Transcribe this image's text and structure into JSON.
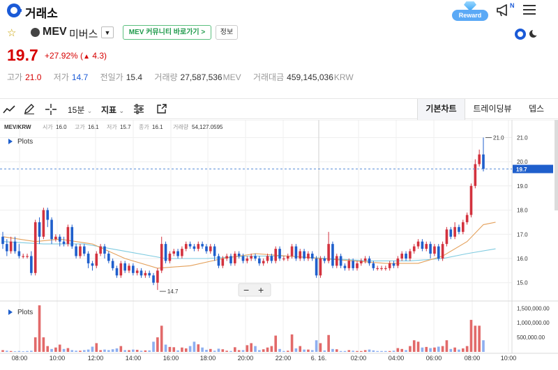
{
  "app": {
    "title": "거래소",
    "reward_label": "Reward",
    "notice_badge": "N"
  },
  "market": {
    "symbol": "MEV",
    "korean_name": "미버스",
    "community_button": "MEV 커뮤니티 바로가기 >",
    "info_button": "정보"
  },
  "price": {
    "current": "19.7",
    "change_percent": "+27.92%",
    "change_amount": "4.3",
    "change_arrow": "▲"
  },
  "stats": {
    "high_label": "고가",
    "high": "21.0",
    "low_label": "저가",
    "low": "14.7",
    "prev_label": "전일가",
    "prev": "15.4",
    "volume_label": "거래량",
    "volume": "27,587,536",
    "volume_unit": "MEV",
    "amount_label": "거래대금",
    "amount": "459,145,036",
    "amount_unit": "KRW"
  },
  "toolbar": {
    "interval": "15분",
    "indicator": "지표",
    "tabs": [
      "기본차트",
      "트레이딩뷰",
      "뎁스"
    ],
    "active_tab": 0
  },
  "chart_info": {
    "pair": "MEV/KRW",
    "open_label": "시가",
    "open": "16.0",
    "high_label": "고가",
    "high": "16.1",
    "low_label": "저가",
    "low": "15.7",
    "close_label": "종가",
    "close": "16.1",
    "vol_label": "거래량",
    "vol": "54,127.0595",
    "plots_label": "Plots",
    "volume_plots_label": "Plots"
  },
  "colors": {
    "up": "#d3323e",
    "down": "#1f5fcc",
    "vol_up": "#e26a6a",
    "vol_down": "#8eaff0",
    "ma_fast": "#e4a05a",
    "ma_slow": "#7fcbe0",
    "accent": "#1a5ad7"
  },
  "chart_data": {
    "type": "candlestick",
    "y_ticks": [
      "21.0",
      "20.0",
      "19.0",
      "18.0",
      "17.0",
      "16.0",
      "15.0"
    ],
    "ylim": [
      14.3,
      21.5
    ],
    "x_ticks": [
      "08:00",
      "10:00",
      "12:00",
      "14:00",
      "16:00",
      "18:00",
      "20:00",
      "22:00",
      "6. 16.",
      "02:00",
      "04:00",
      "06:00",
      "08:00",
      "10:00"
    ],
    "current_price_label": "19.7",
    "high_marker": "21.0",
    "low_marker": "14.7",
    "volume_ticks": [
      "1,500,000.00",
      "1,000,000.00",
      "500,000.00"
    ],
    "volume_max": 1700000,
    "candles": [
      [
        16.9,
        16.6,
        17.1,
        16.4
      ],
      [
        16.6,
        16.3,
        16.8,
        16.1
      ],
      [
        16.3,
        16.7,
        16.9,
        16.2
      ],
      [
        16.7,
        16.3,
        16.9,
        16.2
      ],
      [
        16.3,
        16.1,
        16.6,
        16.0
      ],
      [
        16.1,
        16.1,
        16.2,
        16.0
      ],
      [
        16.1,
        16.1,
        16.2,
        16.0
      ],
      [
        16.1,
        15.4,
        16.3,
        15.3
      ],
      [
        15.4,
        17.5,
        17.6,
        15.3
      ],
      [
        17.5,
        16.9,
        17.7,
        16.6
      ],
      [
        16.9,
        18.0,
        18.1,
        16.8
      ],
      [
        18.0,
        17.6,
        18.1,
        17.3
      ],
      [
        17.6,
        16.8,
        17.7,
        16.6
      ],
      [
        16.8,
        16.9,
        17.0,
        16.7
      ],
      [
        16.9,
        16.7,
        17.0,
        16.5
      ],
      [
        16.7,
        16.6,
        16.9,
        16.5
      ],
      [
        16.6,
        17.3,
        17.4,
        16.5
      ],
      [
        17.3,
        16.5,
        17.4,
        16.4
      ],
      [
        16.5,
        16.1,
        16.6,
        16.0
      ],
      [
        16.1,
        16.5,
        16.6,
        16.0
      ],
      [
        16.5,
        16.2,
        16.6,
        16.1
      ],
      [
        16.2,
        15.8,
        16.3,
        15.6
      ],
      [
        15.8,
        15.7,
        15.9,
        15.5
      ],
      [
        15.7,
        16.2,
        16.3,
        15.6
      ],
      [
        16.2,
        16.5,
        16.6,
        16.1
      ],
      [
        16.5,
        16.2,
        16.6,
        16.0
      ],
      [
        16.2,
        15.9,
        16.3,
        15.8
      ],
      [
        15.9,
        15.6,
        16.0,
        15.5
      ],
      [
        15.6,
        15.3,
        15.7,
        15.2
      ],
      [
        15.3,
        15.8,
        15.9,
        15.2
      ],
      [
        15.8,
        15.5,
        15.9,
        15.4
      ],
      [
        15.5,
        15.7,
        15.8,
        15.4
      ],
      [
        15.7,
        15.4,
        15.8,
        15.3
      ],
      [
        15.4,
        15.5,
        15.6,
        15.3
      ],
      [
        15.5,
        15.3,
        15.6,
        15.2
      ],
      [
        15.3,
        15.4,
        15.5,
        15.2
      ],
      [
        15.4,
        15.3,
        15.5,
        15.2
      ],
      [
        15.3,
        15.0,
        15.4,
        14.9
      ],
      [
        15.0,
        15.5,
        15.6,
        14.7
      ],
      [
        15.5,
        16.6,
        16.9,
        15.4
      ],
      [
        16.6,
        15.9,
        16.7,
        15.8
      ],
      [
        15.9,
        16.2,
        16.3,
        15.8
      ],
      [
        16.2,
        16.3,
        16.4,
        16.1
      ],
      [
        16.3,
        16.1,
        16.4,
        16.0
      ],
      [
        16.1,
        16.4,
        16.5,
        16.0
      ],
      [
        16.4,
        16.6,
        16.7,
        16.3
      ],
      [
        16.6,
        16.5,
        16.7,
        16.4
      ],
      [
        16.5,
        16.4,
        16.6,
        16.3
      ],
      [
        16.4,
        16.6,
        16.7,
        16.3
      ],
      [
        16.6,
        16.5,
        16.7,
        16.4
      ],
      [
        16.5,
        16.3,
        16.6,
        16.2
      ],
      [
        16.3,
        16.5,
        16.6,
        16.2
      ],
      [
        16.5,
        16.1,
        16.6,
        15.9
      ],
      [
        16.1,
        15.7,
        16.2,
        15.6
      ],
      [
        15.7,
        16.0,
        16.1,
        15.6
      ],
      [
        16.0,
        16.1,
        16.2,
        15.9
      ],
      [
        16.1,
        15.8,
        16.2,
        15.7
      ],
      [
        15.8,
        16.2,
        16.3,
        15.7
      ],
      [
        16.2,
        16.1,
        16.3,
        16.0
      ],
      [
        16.1,
        15.9,
        16.2,
        15.8
      ],
      [
        15.9,
        16.0,
        16.1,
        15.8
      ],
      [
        16.0,
        16.1,
        16.2,
        15.9
      ],
      [
        16.1,
        16.0,
        16.2,
        15.9
      ],
      [
        16.0,
        15.8,
        16.1,
        15.7
      ],
      [
        15.8,
        15.9,
        16.0,
        15.7
      ],
      [
        15.9,
        16.1,
        16.2,
        15.8
      ],
      [
        16.1,
        15.9,
        16.2,
        15.8
      ],
      [
        15.9,
        16.4,
        16.5,
        15.8
      ],
      [
        16.4,
        16.0,
        16.5,
        15.9
      ],
      [
        16.0,
        16.0,
        16.1,
        15.9
      ],
      [
        16.0,
        16.1,
        16.2,
        15.9
      ],
      [
        16.1,
        16.5,
        16.6,
        16.0
      ],
      [
        16.5,
        16.0,
        16.6,
        15.9
      ],
      [
        16.0,
        16.3,
        16.4,
        15.9
      ],
      [
        16.3,
        16.0,
        16.4,
        15.9
      ],
      [
        16.0,
        16.2,
        16.3,
        15.9
      ],
      [
        16.2,
        16.0,
        16.3,
        15.9
      ],
      [
        16.0,
        15.3,
        16.1,
        15.2
      ],
      [
        15.3,
        16.0,
        16.1,
        15.2
      ],
      [
        16.0,
        15.9,
        16.1,
        15.8
      ],
      [
        15.9,
        16.6,
        17.1,
        15.8
      ],
      [
        16.6,
        15.7,
        16.7,
        15.6
      ],
      [
        15.7,
        16.1,
        16.2,
        15.6
      ],
      [
        16.1,
        15.7,
        16.2,
        15.6
      ],
      [
        15.7,
        15.6,
        15.8,
        15.5
      ],
      [
        15.6,
        15.9,
        16.0,
        15.5
      ],
      [
        15.9,
        15.6,
        16.0,
        15.5
      ],
      [
        15.6,
        15.8,
        15.9,
        15.5
      ],
      [
        15.8,
        15.9,
        16.0,
        15.7
      ],
      [
        15.9,
        16.0,
        16.1,
        15.8
      ],
      [
        16.0,
        15.8,
        16.1,
        15.7
      ],
      [
        15.8,
        15.6,
        15.9,
        15.5
      ],
      [
        15.6,
        15.6,
        15.7,
        15.5
      ],
      [
        15.6,
        15.6,
        15.7,
        15.5
      ],
      [
        15.6,
        15.6,
        15.7,
        15.5
      ],
      [
        15.6,
        15.8,
        15.9,
        15.5
      ],
      [
        15.8,
        15.7,
        15.9,
        15.6
      ],
      [
        15.7,
        16.0,
        16.1,
        15.6
      ],
      [
        16.0,
        16.2,
        16.3,
        15.9
      ],
      [
        16.2,
        16.0,
        16.3,
        15.9
      ],
      [
        16.0,
        16.3,
        16.4,
        15.9
      ],
      [
        16.3,
        16.5,
        16.6,
        16.2
      ],
      [
        16.5,
        16.7,
        16.8,
        16.4
      ],
      [
        16.7,
        16.4,
        16.8,
        16.3
      ],
      [
        16.4,
        16.6,
        16.7,
        16.3
      ],
      [
        16.6,
        16.2,
        16.7,
        16.0
      ],
      [
        16.2,
        16.5,
        16.6,
        16.1
      ],
      [
        16.5,
        16.0,
        16.6,
        15.9
      ],
      [
        16.0,
        16.6,
        16.7,
        15.9
      ],
      [
        16.6,
        17.2,
        17.3,
        16.5
      ],
      [
        17.2,
        16.9,
        17.3,
        16.8
      ],
      [
        16.9,
        17.3,
        17.5,
        16.8
      ],
      [
        17.3,
        17.1,
        17.4,
        17.0
      ],
      [
        17.1,
        17.5,
        17.6,
        17.0
      ],
      [
        17.5,
        17.8,
        17.9,
        17.4
      ],
      [
        17.8,
        19.0,
        19.1,
        17.7
      ],
      [
        19.0,
        19.9,
        20.1,
        18.9
      ],
      [
        19.9,
        20.3,
        20.5,
        19.8
      ],
      [
        20.3,
        19.7,
        21.0,
        19.6
      ]
    ],
    "volumes": [
      [
        60000,
        1
      ],
      [
        40000,
        0
      ],
      [
        30000,
        1
      ],
      [
        20000,
        0
      ],
      [
        30000,
        0
      ],
      [
        20000,
        0
      ],
      [
        30000,
        0
      ],
      [
        40000,
        0
      ],
      [
        500000,
        1
      ],
      [
        1600000,
        1
      ],
      [
        500000,
        1
      ],
      [
        200000,
        1
      ],
      [
        100000,
        0
      ],
      [
        150000,
        1
      ],
      [
        250000,
        1
      ],
      [
        100000,
        0
      ],
      [
        130000,
        1
      ],
      [
        60000,
        0
      ],
      [
        40000,
        0
      ],
      [
        40000,
        1
      ],
      [
        60000,
        0
      ],
      [
        80000,
        0
      ],
      [
        180000,
        0
      ],
      [
        300000,
        1
      ],
      [
        60000,
        1
      ],
      [
        80000,
        0
      ],
      [
        60000,
        0
      ],
      [
        90000,
        0
      ],
      [
        120000,
        0
      ],
      [
        200000,
        1
      ],
      [
        60000,
        0
      ],
      [
        60000,
        1
      ],
      [
        80000,
        0
      ],
      [
        70000,
        1
      ],
      [
        40000,
        0
      ],
      [
        50000,
        1
      ],
      [
        50000,
        0
      ],
      [
        350000,
        0
      ],
      [
        500000,
        1
      ],
      [
        900000,
        1
      ],
      [
        250000,
        0
      ],
      [
        170000,
        1
      ],
      [
        160000,
        1
      ],
      [
        50000,
        0
      ],
      [
        150000,
        1
      ],
      [
        120000,
        1
      ],
      [
        200000,
        0
      ],
      [
        350000,
        0
      ],
      [
        260000,
        1
      ],
      [
        150000,
        0
      ],
      [
        70000,
        0
      ],
      [
        100000,
        1
      ],
      [
        40000,
        0
      ],
      [
        110000,
        0
      ],
      [
        90000,
        1
      ],
      [
        40000,
        1
      ],
      [
        30000,
        0
      ],
      [
        160000,
        1
      ],
      [
        60000,
        1
      ],
      [
        60000,
        0
      ],
      [
        230000,
        1
      ],
      [
        300000,
        1
      ],
      [
        200000,
        0
      ],
      [
        60000,
        0
      ],
      [
        90000,
        1
      ],
      [
        150000,
        1
      ],
      [
        200000,
        1
      ],
      [
        560000,
        1
      ],
      [
        100000,
        0
      ],
      [
        30000,
        0
      ],
      [
        40000,
        1
      ],
      [
        600000,
        1
      ],
      [
        120000,
        0
      ],
      [
        200000,
        1
      ],
      [
        80000,
        0
      ],
      [
        80000,
        1
      ],
      [
        60000,
        0
      ],
      [
        400000,
        0
      ],
      [
        300000,
        1
      ],
      [
        50000,
        0
      ],
      [
        580000,
        1
      ],
      [
        100000,
        0
      ],
      [
        90000,
        1
      ],
      [
        30000,
        0
      ],
      [
        30000,
        0
      ],
      [
        60000,
        1
      ],
      [
        40000,
        0
      ],
      [
        30000,
        1
      ],
      [
        30000,
        1
      ],
      [
        60000,
        1
      ],
      [
        80000,
        0
      ],
      [
        50000,
        0
      ],
      [
        30000,
        0
      ],
      [
        30000,
        0
      ],
      [
        30000,
        0
      ],
      [
        30000,
        1
      ],
      [
        40000,
        0
      ],
      [
        130000,
        1
      ],
      [
        100000,
        1
      ],
      [
        60000,
        0
      ],
      [
        200000,
        1
      ],
      [
        400000,
        1
      ],
      [
        350000,
        1
      ],
      [
        150000,
        0
      ],
      [
        170000,
        1
      ],
      [
        130000,
        0
      ],
      [
        150000,
        1
      ],
      [
        180000,
        0
      ],
      [
        200000,
        1
      ],
      [
        400000,
        1
      ],
      [
        100000,
        0
      ],
      [
        150000,
        1
      ],
      [
        80000,
        0
      ],
      [
        120000,
        1
      ],
      [
        200000,
        1
      ],
      [
        1100000,
        1
      ],
      [
        900000,
        1
      ],
      [
        900000,
        1
      ],
      [
        400000,
        0
      ]
    ],
    "ma_fast": [
      [
        0,
        16.9
      ],
      [
        8,
        16.7
      ],
      [
        14,
        16.8
      ],
      [
        22,
        16.6
      ],
      [
        30,
        16.0
      ],
      [
        38,
        15.6
      ],
      [
        46,
        15.7
      ],
      [
        54,
        16.0
      ],
      [
        62,
        16.2
      ],
      [
        70,
        16.1
      ],
      [
        78,
        16.0
      ],
      [
        86,
        15.9
      ],
      [
        94,
        15.8
      ],
      [
        102,
        15.8
      ],
      [
        108,
        16.1
      ],
      [
        114,
        16.7
      ],
      [
        118,
        17.4
      ],
      [
        121,
        17.5
      ]
    ],
    "ma_slow": [
      [
        0,
        16.7
      ],
      [
        10,
        16.6
      ],
      [
        20,
        16.6
      ],
      [
        30,
        16.3
      ],
      [
        40,
        16.0
      ],
      [
        50,
        16.0
      ],
      [
        60,
        16.1
      ],
      [
        70,
        16.1
      ],
      [
        80,
        16.0
      ],
      [
        90,
        15.9
      ],
      [
        100,
        15.9
      ],
      [
        108,
        16.0
      ],
      [
        114,
        16.2
      ],
      [
        121,
        16.4
      ]
    ]
  }
}
